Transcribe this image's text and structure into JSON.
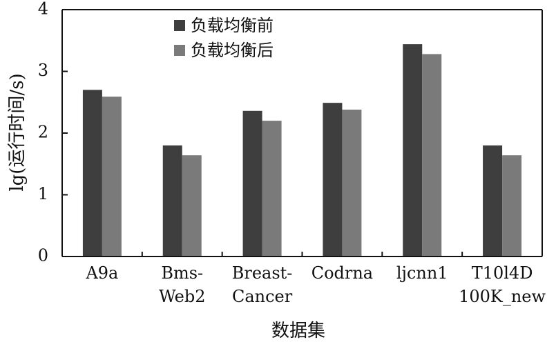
{
  "chart_data": {
    "type": "bar",
    "categories": [
      [
        "A9a"
      ],
      [
        "Bms-",
        "Web2"
      ],
      [
        "Breast-",
        "Cancer"
      ],
      [
        "Codrna"
      ],
      [
        "ljcnn1"
      ],
      [
        "T10l4D",
        "100K_new"
      ]
    ],
    "series": [
      {
        "name": "负载均衡前",
        "values": [
          2.7,
          1.8,
          2.36,
          2.49,
          3.44,
          1.8
        ],
        "color": "#3e3e3e"
      },
      {
        "name": "负载均衡后",
        "values": [
          2.59,
          1.64,
          2.2,
          2.38,
          3.28,
          1.64
        ],
        "color": "#7a7a7a"
      }
    ],
    "xlabel": "数据集",
    "ylabel": "lg(运行时间/s)",
    "ylim": [
      0,
      4
    ],
    "yticks": [
      "0",
      "1",
      "2",
      "3",
      "4"
    ],
    "grid": false,
    "legend_position": "top-left"
  }
}
